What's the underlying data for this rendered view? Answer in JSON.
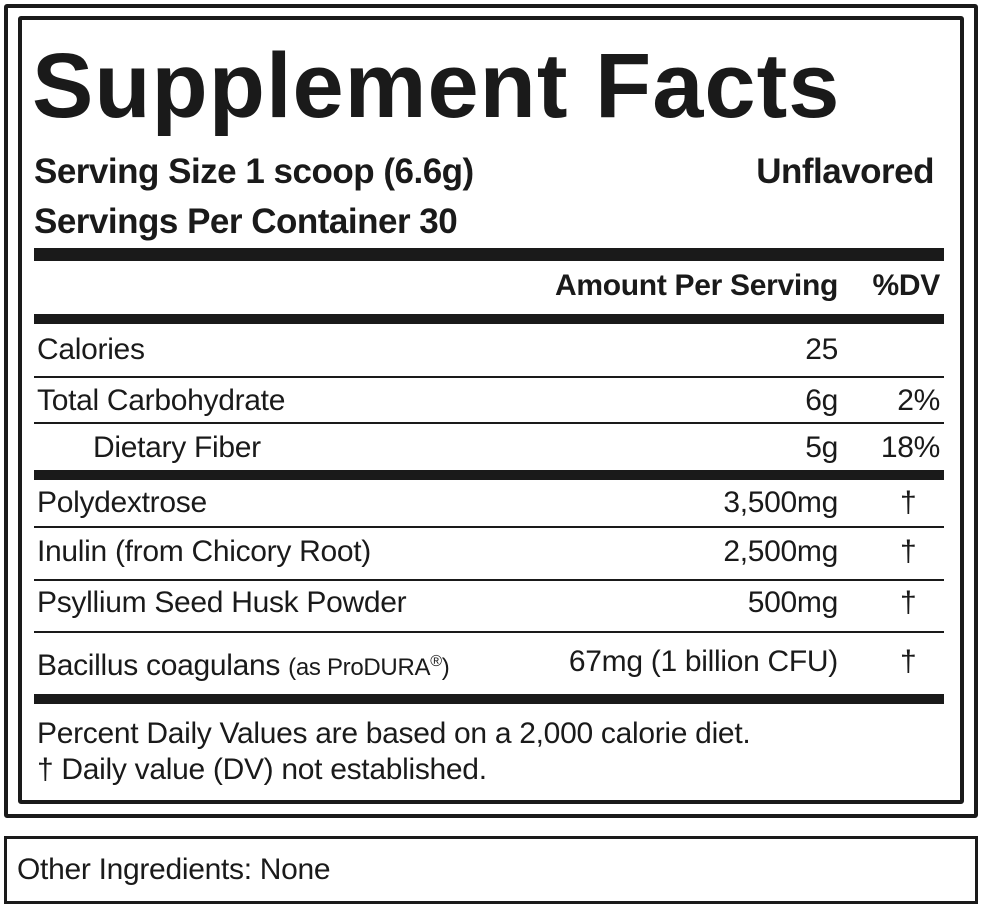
{
  "title": "Supplement Facts",
  "serving_size": "Serving Size 1 scoop (6.6g)",
  "flavor": "Unflavored",
  "servings_per_container": "Servings Per Container 30",
  "header": {
    "amount": "Amount Per Serving",
    "dv": "%DV"
  },
  "rows": [
    {
      "name": "Calories",
      "amount": "25",
      "dv": ""
    },
    {
      "name": "Total Carbohydrate",
      "amount": "6g",
      "dv": "2%"
    },
    {
      "name": "Dietary Fiber",
      "amount": "5g",
      "dv": "18%"
    },
    {
      "name": "Polydextrose",
      "amount": "3,500mg",
      "dv": "†"
    },
    {
      "name": "Inulin (from Chicory Root)",
      "amount": "2,500mg",
      "dv": "†"
    },
    {
      "name": "Psyllium Seed Husk Powder",
      "amount": "500mg",
      "dv": "†"
    },
    {
      "name": "Bacillus coagulans",
      "name_note": "(as ProDURA",
      "name_mark": "®",
      "name_close": ")",
      "amount": "67mg (1 billion CFU)",
      "dv": "†"
    }
  ],
  "footnotes": [
    "Percent Daily Values are based on a 2,000 calorie diet.",
    "† Daily value (DV) not established."
  ],
  "other_ingredients": "Other Ingredients: None"
}
